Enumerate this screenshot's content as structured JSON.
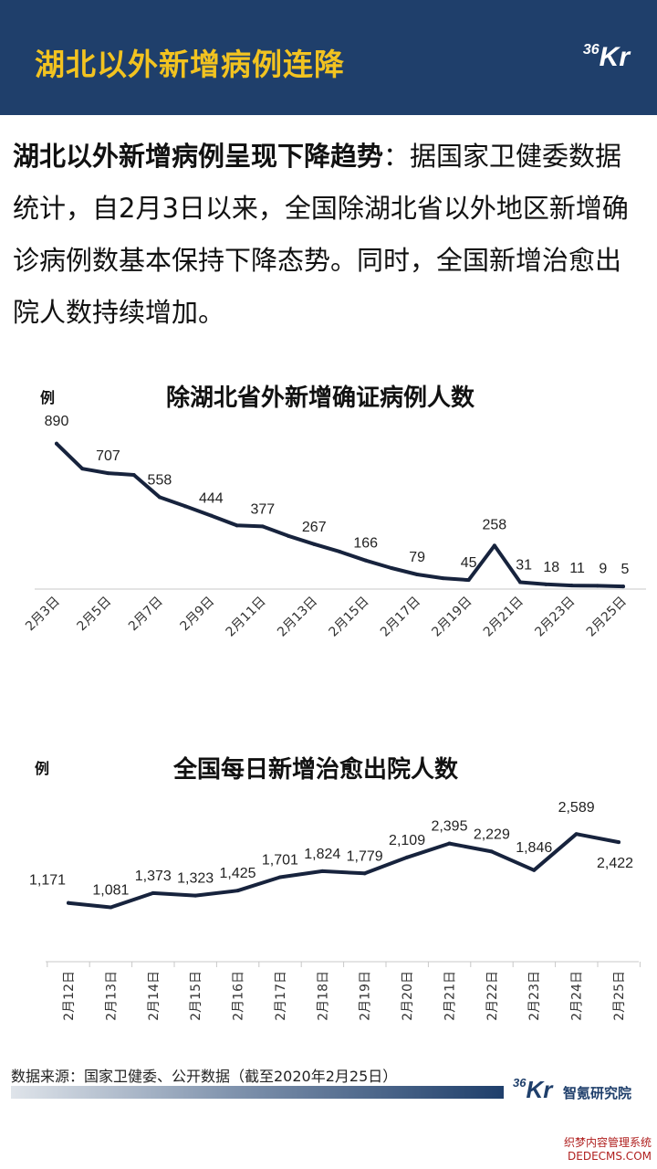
{
  "header": {
    "title": "湖北以外新增病例连降",
    "logo_number": "36",
    "logo_letters": "Kr"
  },
  "intro": {
    "lead": "湖北以外新增病例呈现下降趋势",
    "body": "：据国家卫健委数据统计，自2月3日以来，全国除湖北省以外地区新增确诊病例数基本保持下降态势。同时，全国新增治愈出院人数持续增加。"
  },
  "chart_data": [
    {
      "type": "line",
      "title": "除湖北省外新增确证病例人数",
      "ylabel": "例",
      "x": [
        "2月3日",
        "2月4日",
        "2月5日",
        "2月6日",
        "2月7日",
        "2月8日",
        "2月9日",
        "2月10日",
        "2月11日",
        "2月12日",
        "2月13日",
        "2月14日",
        "2月15日",
        "2月16日",
        "2月17日",
        "2月18日",
        "2月19日",
        "2月20日",
        "2月21日",
        "2月22日",
        "2月23日",
        "2月24日",
        "2月25日"
      ],
      "tick_labels": [
        "2月3日",
        "2月5日",
        "2月7日",
        "2月9日",
        "2月11日",
        "2月13日",
        "2月15日",
        "2月17日",
        "2月19日",
        "2月21日",
        "2月23日",
        "2月25日"
      ],
      "values": [
        890,
        735,
        707,
        696,
        558,
        502,
        444,
        383,
        377,
        318,
        267,
        220,
        166,
        119,
        79,
        56,
        45,
        258,
        31,
        18,
        11,
        9,
        5
      ],
      "data_labels": [
        {
          "index": 0,
          "text": "890"
        },
        {
          "index": 2,
          "text": "707"
        },
        {
          "index": 4,
          "text": "558"
        },
        {
          "index": 6,
          "text": "444"
        },
        {
          "index": 8,
          "text": "377"
        },
        {
          "index": 10,
          "text": "267"
        },
        {
          "index": 12,
          "text": "166"
        },
        {
          "index": 14,
          "text": "79"
        },
        {
          "index": 16,
          "text": "45"
        },
        {
          "index": 17,
          "text": "258"
        },
        {
          "index": 18,
          "text": "31"
        },
        {
          "index": 19,
          "text": "18"
        },
        {
          "index": 20,
          "text": "11"
        },
        {
          "index": 21,
          "text": "9"
        },
        {
          "index": 22,
          "text": "5"
        }
      ],
      "ylim": [
        0,
        900
      ],
      "color": "#17233d",
      "grid": false
    },
    {
      "type": "line",
      "title": "全国每日新增治愈出院人数",
      "ylabel": "例",
      "x": [
        "2月12日",
        "2月13日",
        "2月14日",
        "2月15日",
        "2月16日",
        "2月17日",
        "2月18日",
        "2月19日",
        "2月20日",
        "2月21日",
        "2月22日",
        "2月23日",
        "2月24日",
        "2月25日"
      ],
      "tick_labels": [
        "2月12日",
        "2月13日",
        "2月14日",
        "2月15日",
        "2月16日",
        "2月17日",
        "2月18日",
        "2月19日",
        "2月20日",
        "2月21日",
        "2月22日",
        "2月23日",
        "2月24日",
        "2月25日"
      ],
      "values": [
        1171,
        1081,
        1373,
        1323,
        1425,
        1701,
        1824,
        1779,
        2109,
        2395,
        2229,
        1846,
        2589,
        2422
      ],
      "data_labels": [
        {
          "index": 0,
          "text": "1,171"
        },
        {
          "index": 1,
          "text": "1,081"
        },
        {
          "index": 2,
          "text": "1,373"
        },
        {
          "index": 3,
          "text": "1,323"
        },
        {
          "index": 4,
          "text": "1,425"
        },
        {
          "index": 5,
          "text": "1,701"
        },
        {
          "index": 6,
          "text": "1,824"
        },
        {
          "index": 7,
          "text": "1,779"
        },
        {
          "index": 8,
          "text": "2,109"
        },
        {
          "index": 9,
          "text": "2,395"
        },
        {
          "index": 10,
          "text": "2,229"
        },
        {
          "index": 11,
          "text": "1,846"
        },
        {
          "index": 12,
          "text": "2,589"
        },
        {
          "index": 13,
          "text": "2,422"
        }
      ],
      "ylim": [
        0,
        2800
      ],
      "color": "#17233d",
      "grid": false
    }
  ],
  "footer": {
    "source": "数据来源：国家卫健委、公开数据（截至2020年2月25日）",
    "logo_number": "36",
    "logo_letters": "Kr",
    "org": "智氪研究院"
  },
  "watermark": {
    "line1": "织梦内容管理系统",
    "line2": "DEDECMS.COM"
  }
}
